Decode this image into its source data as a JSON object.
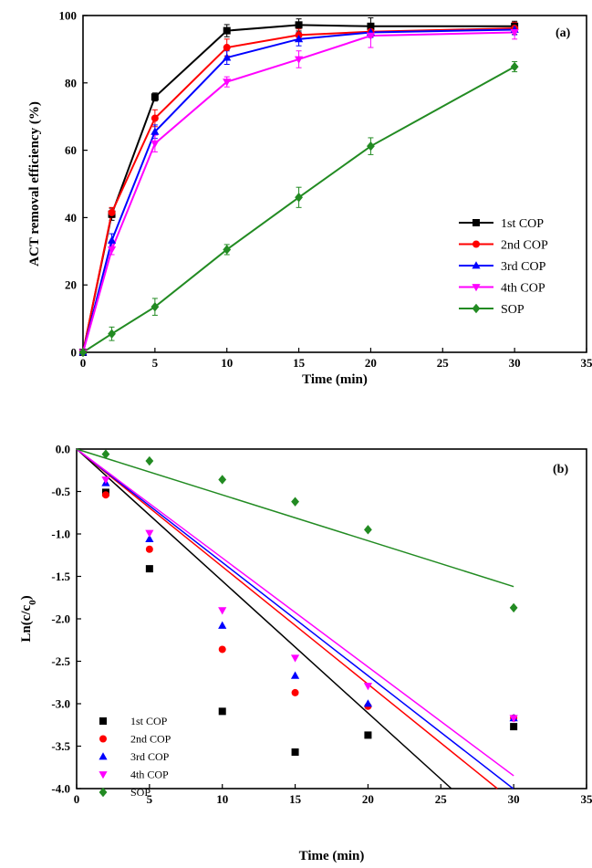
{
  "colors": {
    "1st COP": "#000000",
    "2nd COP": "#ff0000",
    "3rd COP": "#0000ff",
    "4th COP": "#ff00ff",
    "SOP": "#228b22"
  },
  "chart_data": [
    {
      "type": "line",
      "panel_label": "(a)",
      "xlabel": "Time (min)",
      "ylabel": "ACT removal efficiency (%)",
      "xlim": [
        0,
        35
      ],
      "ylim": [
        0,
        100
      ],
      "xticks": [
        0,
        5,
        10,
        15,
        20,
        25,
        30,
        35
      ],
      "yticks": [
        0,
        20,
        40,
        60,
        80,
        100
      ],
      "legend_position": "center-right",
      "error_bars": true,
      "series": [
        {
          "name": "1st COP",
          "marker": "square",
          "x": [
            0,
            2,
            5,
            10,
            15,
            20,
            30
          ],
          "y": [
            0,
            41,
            75.8,
            95.5,
            97.2,
            96.8,
            96.8
          ],
          "err": [
            0,
            1.8,
            1.2,
            1.8,
            1.8,
            2.5,
            1.5
          ]
        },
        {
          "name": "2nd COP",
          "marker": "circle",
          "x": [
            0,
            2,
            5,
            10,
            15,
            20,
            30
          ],
          "y": [
            0,
            41.5,
            69.5,
            90.5,
            94.2,
            95.2,
            96.2
          ],
          "err": [
            0,
            1.5,
            2.5,
            2.5,
            1.8,
            1.5,
            1.8
          ]
        },
        {
          "name": "3rd COP",
          "marker": "triangle-up",
          "x": [
            0,
            2,
            5,
            10,
            15,
            20,
            30
          ],
          "y": [
            0,
            33.2,
            65.5,
            87.5,
            93.0,
            95.0,
            95.8
          ],
          "err": [
            0,
            2.0,
            2.0,
            2.0,
            2.0,
            1.5,
            1.5
          ]
        },
        {
          "name": "4th COP",
          "marker": "triangle-down",
          "x": [
            0,
            2,
            5,
            10,
            15,
            20,
            30
          ],
          "y": [
            0,
            30.5,
            62.0,
            80.3,
            87.0,
            94.0,
            95.0
          ],
          "err": [
            0,
            1.5,
            2.5,
            1.5,
            2.5,
            3.5,
            2.0
          ]
        },
        {
          "name": "SOP",
          "marker": "diamond",
          "x": [
            0,
            2,
            5,
            10,
            15,
            20,
            30
          ],
          "y": [
            0,
            5.5,
            13.5,
            30.5,
            46.0,
            61.2,
            84.8
          ],
          "err": [
            0,
            2.0,
            2.5,
            1.5,
            3.0,
            2.5,
            1.5
          ]
        }
      ]
    },
    {
      "type": "scatter",
      "panel_label": "(b)",
      "xlabel": "Time (min)",
      "ylabel": "Ln(c/c",
      "ylabel_sub": "0",
      "ylabel_close": ")",
      "xlim": [
        0,
        35
      ],
      "ylim": [
        -4.0,
        0.0
      ],
      "xticks": [
        0,
        5,
        10,
        15,
        20,
        25,
        30,
        35
      ],
      "yticks": [
        0.0,
        -0.5,
        -1.0,
        -1.5,
        -2.0,
        -2.5,
        -3.0,
        -3.5,
        -4.0
      ],
      "ytick_labels": [
        "0.0",
        "-0.5",
        "-1.0",
        "-1.5",
        "-2.0",
        "-2.5",
        "-3.0",
        "-3.5",
        "-4.0"
      ],
      "legend_position": "bottom-left",
      "series": [
        {
          "name": "1st COP",
          "marker": "square",
          "x": [
            2,
            5,
            10,
            15,
            20,
            30
          ],
          "y": [
            -0.51,
            -1.41,
            -3.09,
            -3.57,
            -3.37,
            -3.27
          ],
          "fit_slope": -0.1555
        },
        {
          "name": "2nd COP",
          "marker": "circle",
          "x": [
            2,
            5,
            10,
            15,
            20,
            30
          ],
          "y": [
            -0.54,
            -1.18,
            -2.36,
            -2.87,
            -3.03,
            -3.17
          ],
          "fit_slope": -0.1385
        },
        {
          "name": "3rd COP",
          "marker": "triangle-up",
          "x": [
            2,
            5,
            10,
            15,
            20,
            30
          ],
          "y": [
            -0.4,
            -1.06,
            -2.08,
            -2.67,
            -3.0,
            -3.17
          ],
          "fit_slope": -0.1335
        },
        {
          "name": "4th COP",
          "marker": "triangle-down",
          "x": [
            2,
            5,
            10,
            15,
            20,
            30
          ],
          "y": [
            -0.36,
            -0.99,
            -1.9,
            -2.46,
            -2.79,
            -3.17
          ],
          "fit_slope": -0.1283
        },
        {
          "name": "SOP",
          "marker": "diamond",
          "x": [
            2,
            5,
            10,
            15,
            20,
            30
          ],
          "y": [
            -0.06,
            -0.14,
            -0.36,
            -0.62,
            -0.95,
            -1.87
          ],
          "fit_slope": -0.054
        }
      ]
    }
  ]
}
